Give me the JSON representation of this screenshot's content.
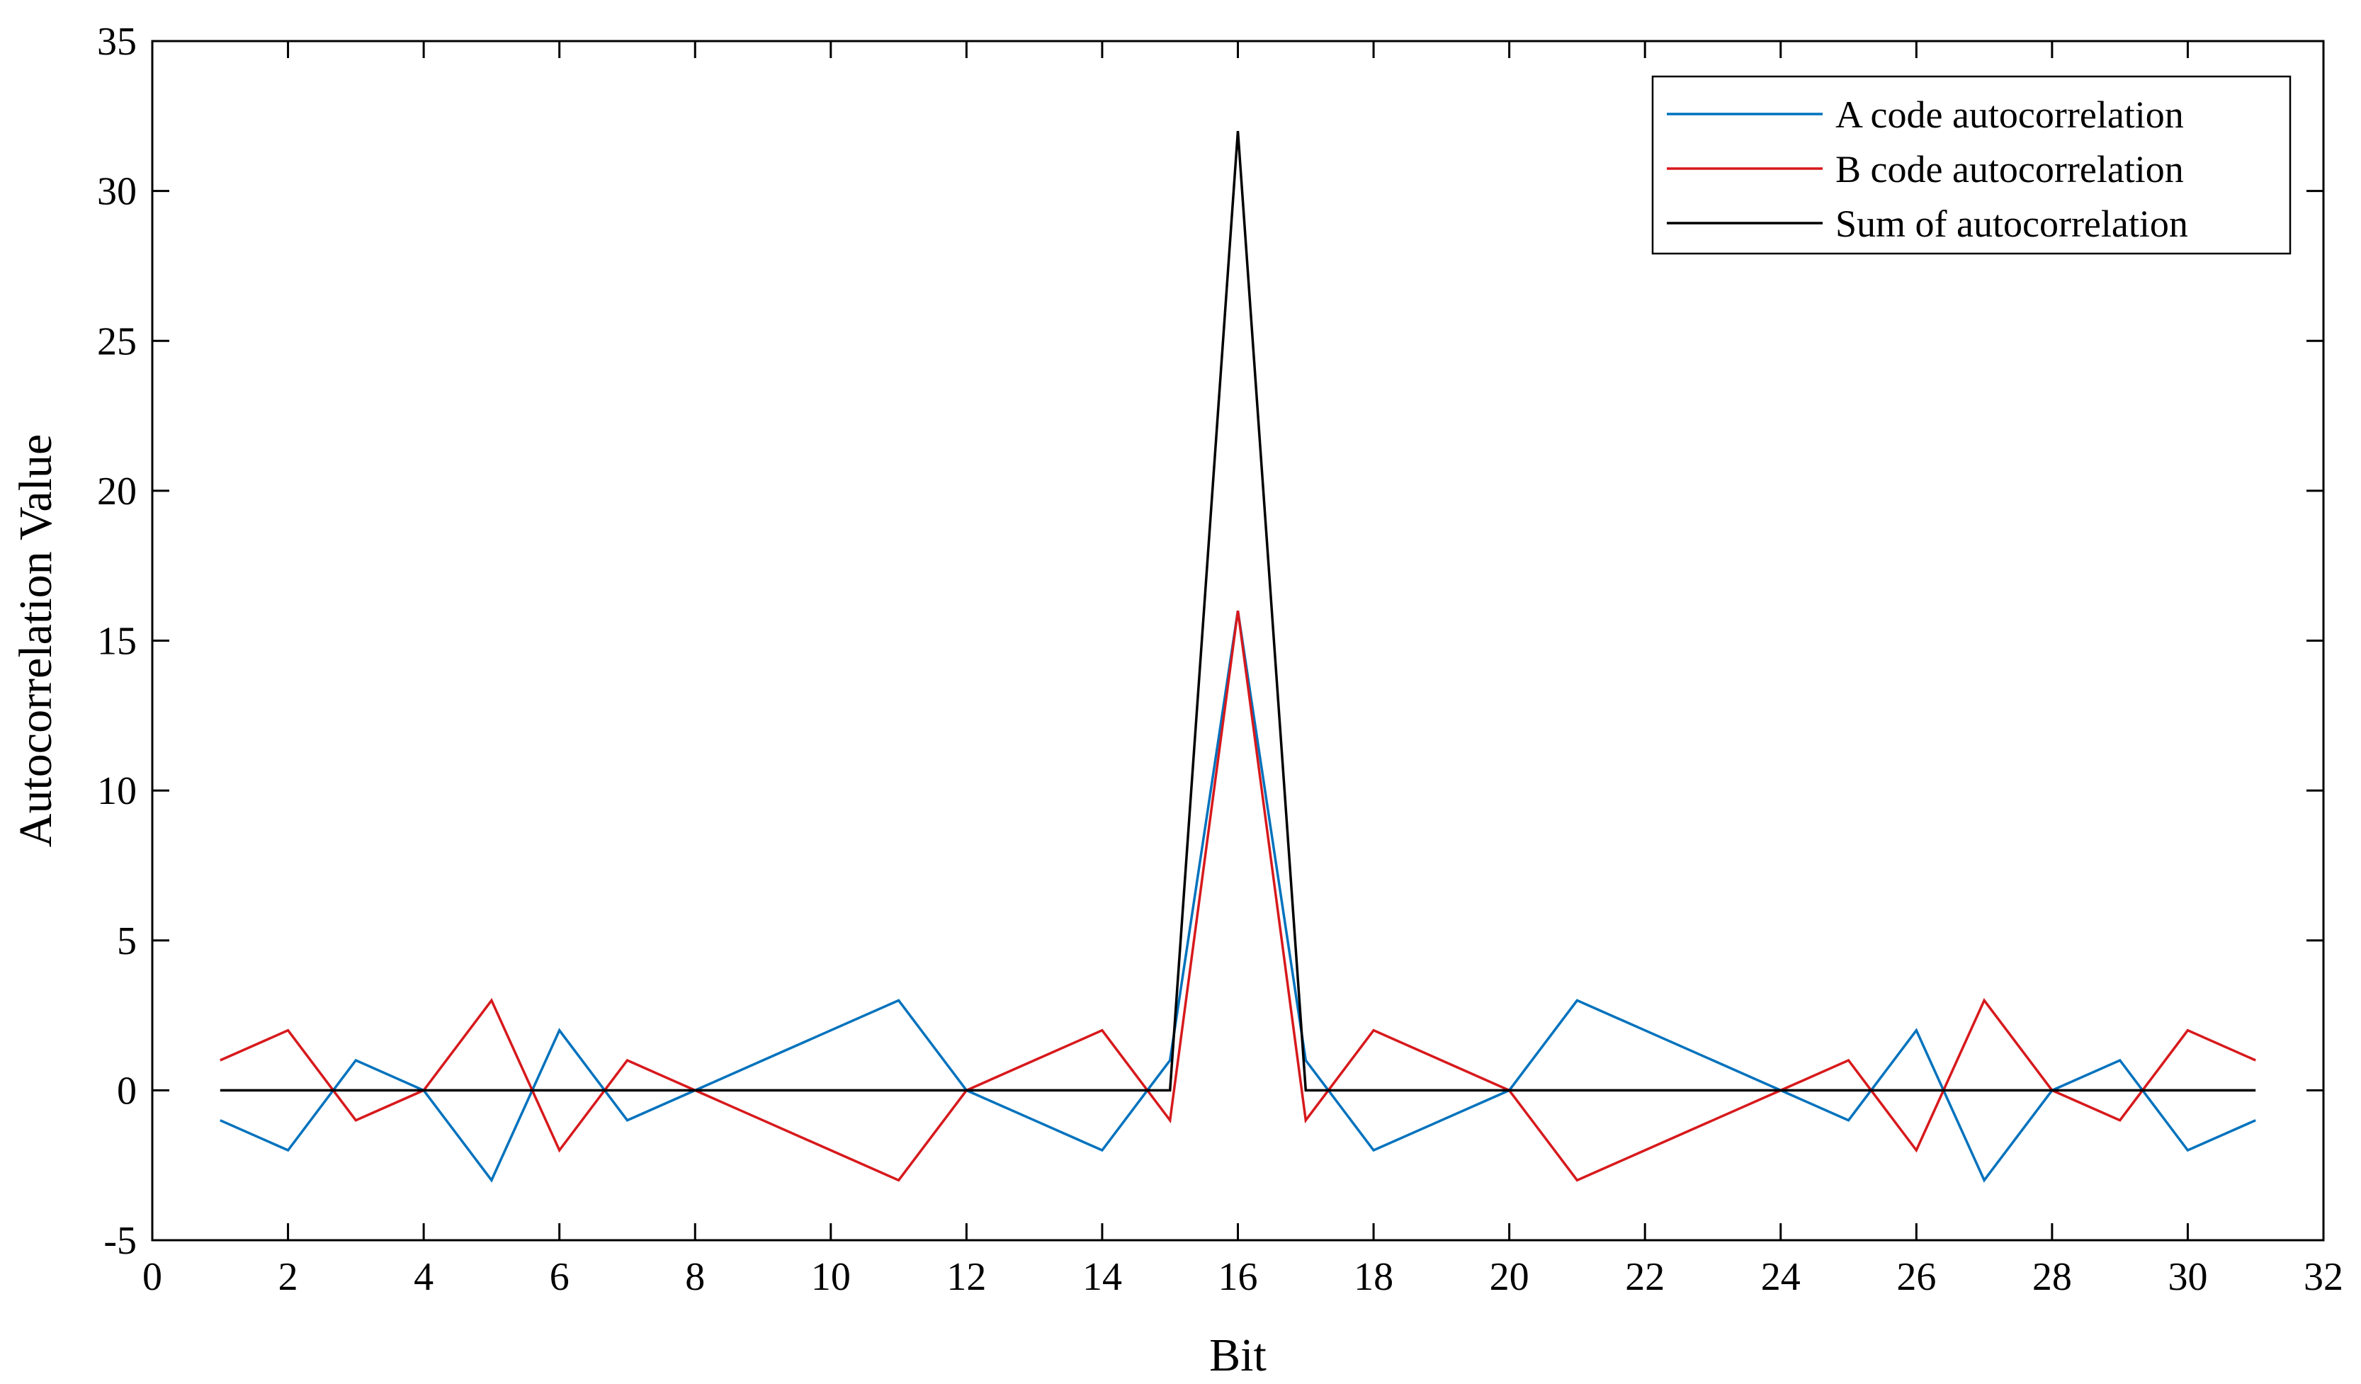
{
  "chart_data": {
    "type": "line",
    "title": "",
    "xlabel": "Bit",
    "ylabel": "Autocorrelation Value",
    "xlim": [
      0,
      32
    ],
    "ylim": [
      -5,
      35
    ],
    "xticks": [
      0,
      2,
      4,
      6,
      8,
      10,
      12,
      14,
      16,
      18,
      20,
      22,
      24,
      26,
      28,
      30,
      32
    ],
    "yticks": [
      -5,
      0,
      5,
      10,
      15,
      20,
      25,
      30,
      35
    ],
    "grid": false,
    "legend_position": "top-right",
    "x": [
      1,
      2,
      3,
      4,
      5,
      6,
      7,
      8,
      9,
      10,
      11,
      12,
      13,
      14,
      15,
      16,
      17,
      18,
      19,
      20,
      21,
      22,
      23,
      24,
      25,
      26,
      27,
      28,
      29,
      30,
      31
    ],
    "series": [
      {
        "name": "A code autocorrelation",
        "color": "#0072BD",
        "values": [
          -1,
          -2,
          1,
          0,
          -3,
          2,
          -1,
          0,
          1,
          2,
          3,
          0,
          -1,
          -2,
          1,
          16,
          1,
          -2,
          -1,
          0,
          3,
          2,
          1,
          0,
          -1,
          2,
          -3,
          0,
          1,
          -2,
          -1
        ]
      },
      {
        "name": "B code autocorrelation",
        "color": "#D7191C",
        "values": [
          1,
          2,
          -1,
          0,
          3,
          -2,
          1,
          0,
          -1,
          -2,
          -3,
          0,
          1,
          2,
          -1,
          16,
          -1,
          2,
          1,
          0,
          -3,
          -2,
          -1,
          0,
          1,
          -2,
          3,
          0,
          -1,
          2,
          1
        ]
      },
      {
        "name": "Sum of autocorrelation",
        "color": "#000000",
        "values": [
          0,
          0,
          0,
          0,
          0,
          0,
          0,
          0,
          0,
          0,
          0,
          0,
          0,
          0,
          0,
          32,
          0,
          0,
          0,
          0,
          0,
          0,
          0,
          0,
          0,
          0,
          0,
          0,
          0,
          0,
          0
        ]
      }
    ]
  }
}
